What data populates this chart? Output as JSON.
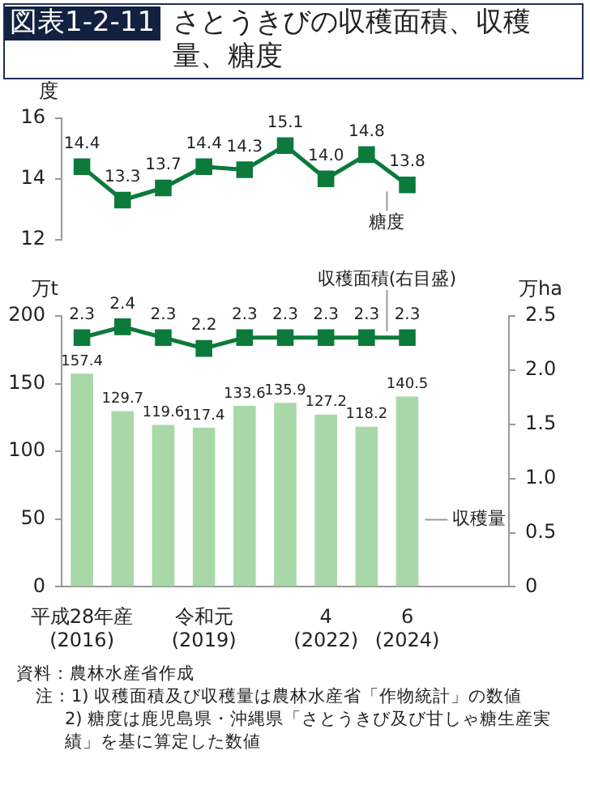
{
  "chart_data": [
    {
      "type": "line",
      "title": "図表1-2-11 さとうきびの収穫面積、収穫量、糖度",
      "categories": [
        null,
        null,
        null,
        null,
        null,
        null,
        null,
        null,
        null
      ],
      "series": [
        {
          "name": "糖度",
          "color": "#0b7a3a",
          "values": [
            14.4,
            13.3,
            13.7,
            14.4,
            14.3,
            15.1,
            14.0,
            14.8,
            13.8
          ],
          "value_labels": [
            "14.4",
            "13.3",
            "13.7",
            "14.4",
            "14.3",
            "15.1",
            "14.0",
            "14.8",
            "13.8"
          ]
        }
      ],
      "ylabel": "度",
      "ylim": [
        12,
        16
      ],
      "yticks": [
        12,
        14,
        16
      ],
      "marker": "square",
      "tick_labels": "y"
    },
    {
      "type": "bar",
      "categories": [
        "平成28年産\n(2016)",
        null,
        null,
        "令和元\n(2019)",
        null,
        null,
        "4\n(2022)",
        null,
        "6\n(2024)"
      ],
      "series": [
        {
          "name": "収穫量",
          "color": "#a8d8a8",
          "values": [
            157.4,
            129.7,
            119.6,
            117.4,
            133.6,
            135.9,
            127.2,
            118.2,
            140.5
          ]
        },
        {
          "name": "収穫面積(右目盛)",
          "type": "line",
          "axis": "y2",
          "color": "#0b7a3a",
          "values": [
            2.3,
            2.4,
            2.3,
            2.2,
            2.3,
            2.3,
            2.3,
            2.3,
            2.3
          ]
        }
      ],
      "ylabel": "万t",
      "y2label": "万ha",
      "ylim": [
        0,
        200
      ],
      "yticks": [
        0,
        50,
        100,
        150,
        200
      ],
      "y2lim": [
        0,
        2.5
      ],
      "y2ticks": [
        0,
        0.5,
        {
          "value": 1,
          "label": "1.0"
        },
        1.5,
        {
          "value": 2,
          "label": "2.0"
        },
        2.5
      ],
      "marker": "square",
      "data_labels": true,
      "annotations": [
        "資料：農林水産省作成",
        "注：1) 収穫面積及び収穫量は農林水産省「作物統計」の数値",
        "2) 糖度は鹿児島県・沖縄県「さとうきび及び甘しゃ糖生産実績」を基に算定した数値"
      ]
    }
  ]
}
